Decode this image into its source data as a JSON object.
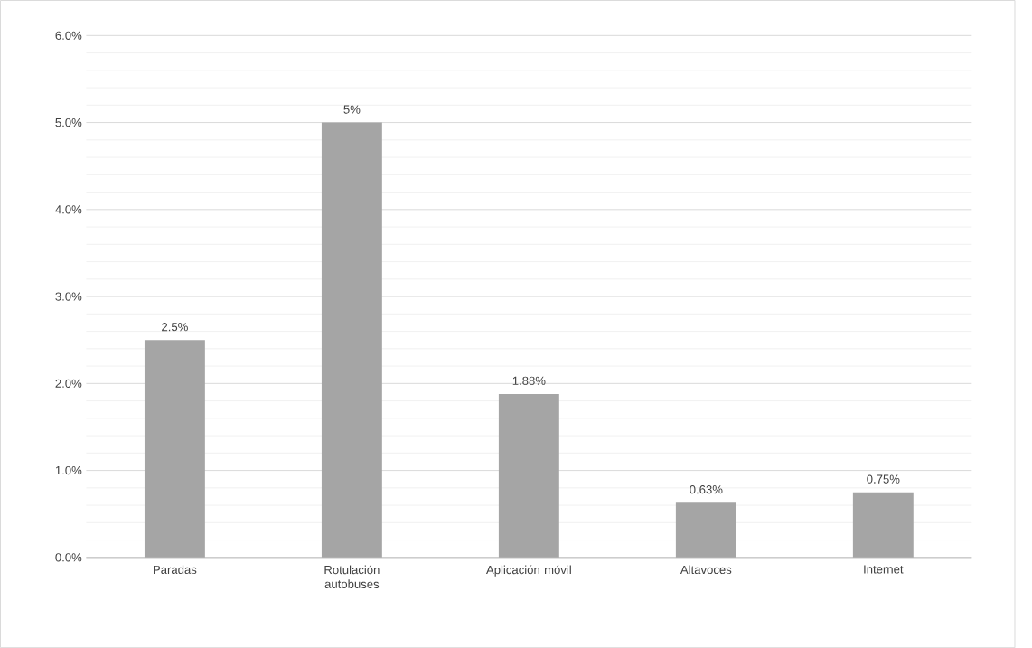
{
  "chart_data": {
    "type": "bar",
    "categories": [
      "Paradas",
      "Rotulación autobuses",
      "Aplicación móvil",
      "Altavoces",
      "Internet"
    ],
    "values": [
      2.5,
      5,
      1.88,
      0.63,
      0.75
    ],
    "value_labels": [
      "2.5%",
      "5%",
      "1.88%",
      "0.63%",
      "0.75%"
    ],
    "color": "#a5a5a5",
    "ylim": [
      0,
      6
    ],
    "yticks": [
      {
        "value": 0,
        "label": "0.0%"
      },
      {
        "value": 1,
        "label": "1.0%"
      },
      {
        "value": 2,
        "label": "2.0%"
      },
      {
        "value": 3,
        "label": "3.0%"
      },
      {
        "value": 4,
        "label": "4.0%"
      },
      {
        "value": 5,
        "label": "5.0%"
      },
      {
        "value": 6,
        "label": "6.0%"
      }
    ],
    "grid": true
  }
}
